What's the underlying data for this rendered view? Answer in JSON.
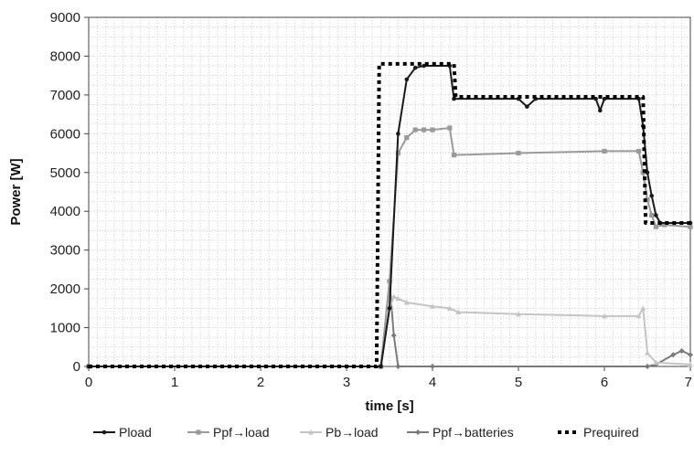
{
  "chart_data": {
    "type": "line",
    "xlabel": "time [s]",
    "ylabel": "Power [W]",
    "xlim": [
      0,
      7
    ],
    "ylim": [
      0,
      9000
    ],
    "xticks": [
      "0",
      "1",
      "2",
      "3",
      "4",
      "5",
      "6",
      "7"
    ],
    "yticks": [
      "0",
      "1000",
      "2000",
      "3000",
      "4000",
      "5000",
      "6000",
      "7000",
      "8000",
      "9000"
    ],
    "grid": true,
    "legend_position": "bottom",
    "series": [
      {
        "name": "Pload",
        "color": "#1a1a1a",
        "marker": "dot",
        "x": [
          0,
          3.4,
          3.5,
          3.6,
          3.7,
          3.8,
          3.9,
          4.2,
          4.25,
          5.0,
          5.1,
          5.2,
          5.9,
          5.95,
          6.0,
          6.4,
          6.45,
          6.5,
          6.55,
          6.6,
          6.65,
          7.0
        ],
        "y": [
          0,
          0,
          1500,
          6000,
          7400,
          7700,
          7750,
          7750,
          6900,
          6900,
          6700,
          6900,
          6900,
          6600,
          6900,
          6900,
          6200,
          5000,
          4400,
          3900,
          3700,
          3700
        ]
      },
      {
        "name": "Ppf→load",
        "color": "#9a9a9a",
        "marker": "square",
        "x": [
          0,
          3.4,
          3.5,
          3.6,
          3.7,
          3.8,
          3.9,
          4.0,
          4.2,
          4.25,
          5.0,
          6.0,
          6.4,
          6.45,
          6.5,
          6.55,
          6.6,
          6.7,
          7.0
        ],
        "y": [
          0,
          0,
          2200,
          5500,
          5900,
          6100,
          6100,
          6100,
          6150,
          5450,
          5500,
          5550,
          5550,
          5000,
          4300,
          3900,
          3600,
          3650,
          3600
        ]
      },
      {
        "name": "Pb→load",
        "color": "#c4c4c4",
        "marker": "triangle",
        "x": [
          0,
          3.4,
          3.5,
          3.55,
          3.6,
          3.7,
          4.0,
          4.2,
          4.3,
          5.0,
          6.0,
          6.4,
          6.45,
          6.5,
          6.6,
          7.0
        ],
        "y": [
          0,
          0,
          1500,
          1800,
          1750,
          1650,
          1550,
          1500,
          1400,
          1350,
          1300,
          1300,
          1500,
          350,
          100,
          50
        ]
      },
      {
        "name": "Ppf→batteries",
        "color": "#7a7a7a",
        "marker": "diamond",
        "x": [
          0,
          3.4,
          3.5,
          3.55,
          3.6,
          4.0,
          6.5,
          6.6,
          6.8,
          6.9,
          7.0
        ],
        "y": [
          0,
          0,
          2200,
          800,
          0,
          0,
          0,
          50,
          300,
          400,
          300
        ]
      },
      {
        "name": "Prequired",
        "color": "#000000",
        "marker": "none",
        "dashed": true,
        "x": [
          0,
          3.35,
          3.38,
          4.25,
          4.27,
          6.45,
          6.48,
          7.0
        ],
        "y": [
          0,
          0,
          7800,
          7800,
          6950,
          6950,
          3700,
          3700
        ]
      }
    ]
  }
}
